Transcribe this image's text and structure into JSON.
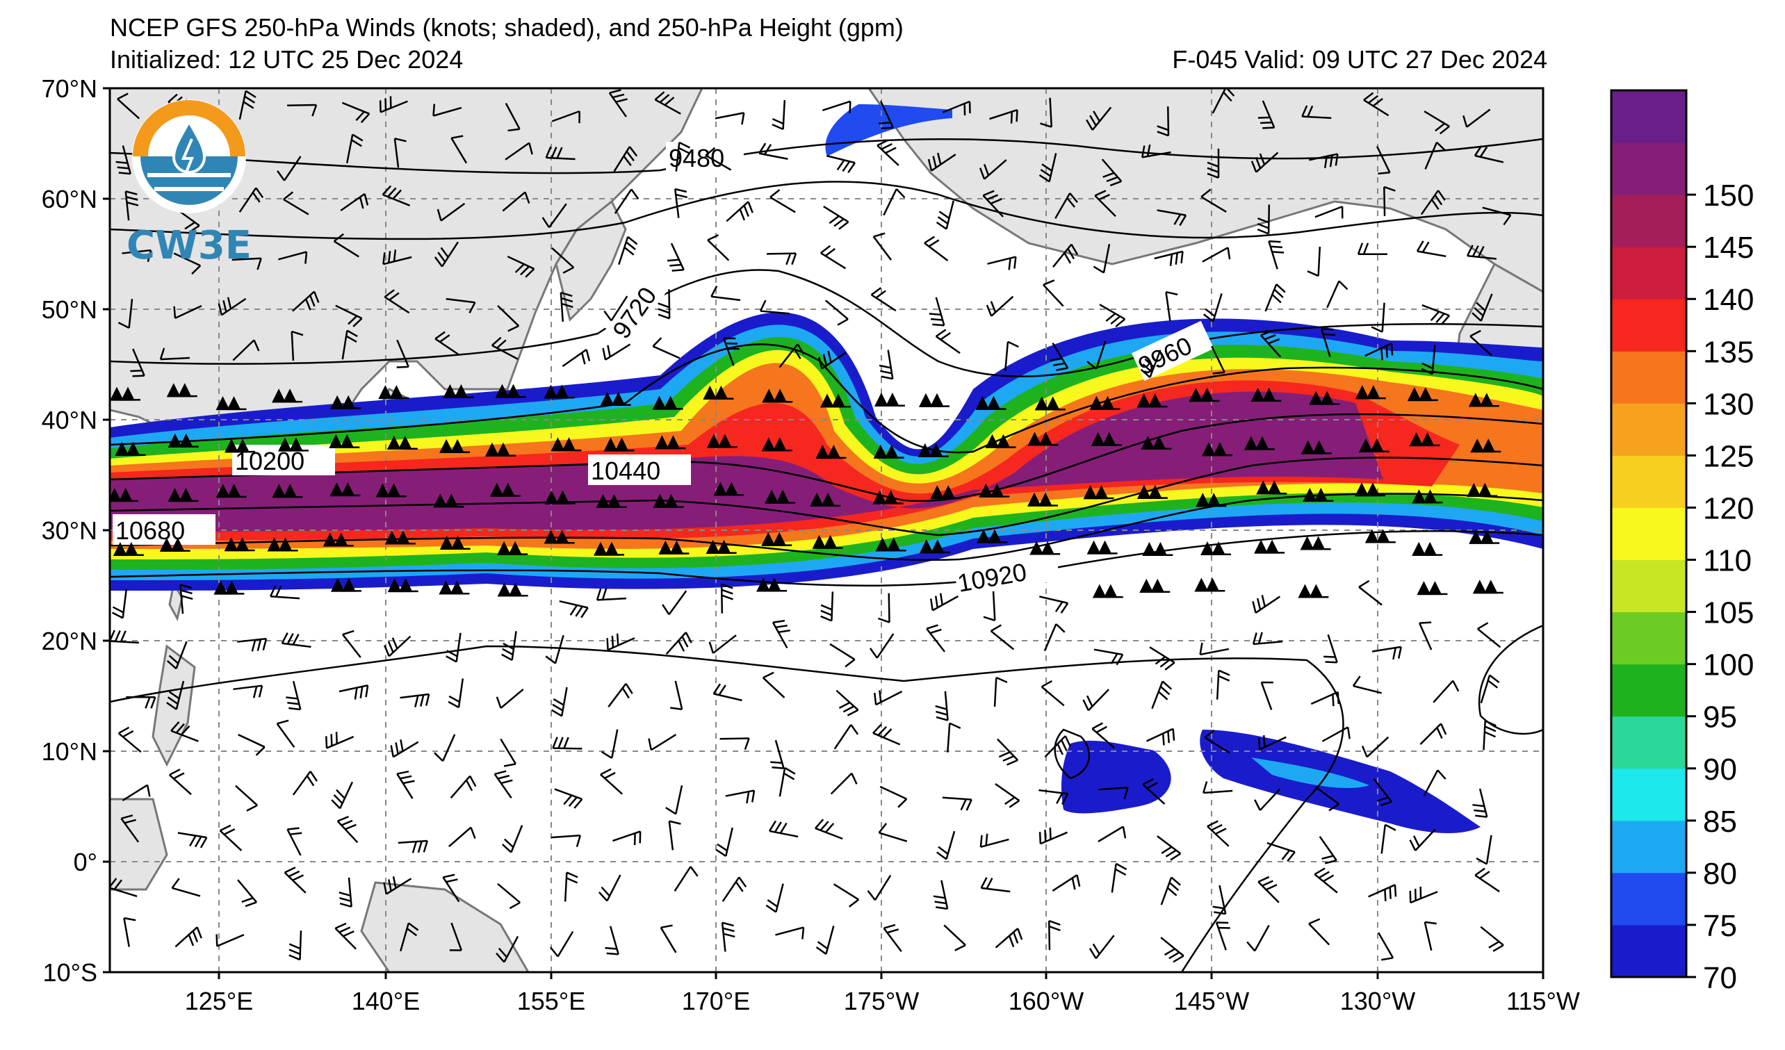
{
  "title": {
    "line1": "NCEP GFS 250-hPa Winds (knots; shaded), and 250-hPa Height (gpm)",
    "line2": "Initialized: 12 UTC 25 Dec 2024",
    "valid": "F-045  Valid: 09 UTC 27 Dec 2024"
  },
  "logo": {
    "text": "CW3E"
  },
  "map": {
    "lat_labels": [
      "70°N",
      "60°N",
      "50°N",
      "40°N",
      "30°N",
      "20°N",
      "10°N",
      "0°",
      "10°S"
    ],
    "lon_labels": [
      "125°E",
      "140°E",
      "155°E",
      "170°E",
      "175°W",
      "160°W",
      "145°W",
      "130°W",
      "115°W"
    ],
    "contour_labels": [
      "9480",
      "9720",
      "9960",
      "10200",
      "10440",
      "10680",
      "10920"
    ]
  },
  "colorbar": {
    "levels": [
      "70",
      "75",
      "80",
      "85",
      "90",
      "95",
      "100",
      "105",
      "110",
      "120",
      "125",
      "130",
      "135",
      "140",
      "145",
      "150"
    ],
    "colors": [
      "#1a1ccc",
      "#1f4bf0",
      "#1ea8f3",
      "#1de8ec",
      "#2bd89a",
      "#1eb31e",
      "#6ccc23",
      "#c8e624",
      "#f8f81e",
      "#f8cf1e",
      "#f7a21e",
      "#f6761e",
      "#f6271e",
      "#cc1e3c",
      "#a41e5a",
      "#861e78",
      "#6a1e8a"
    ]
  },
  "chart_data": {
    "type": "heatmap",
    "field": "250-hPa wind speed (knots; shaded) with 250-hPa height contours (gpm)",
    "lat_range": [
      -10,
      70
    ],
    "lon_range": [
      "115°E",
      "115°W"
    ],
    "colorbar_range": [
      70,
      155
    ],
    "contour_values": [
      9480,
      9720,
      9960,
      10200,
      10440,
      10680,
      10920
    ]
  }
}
